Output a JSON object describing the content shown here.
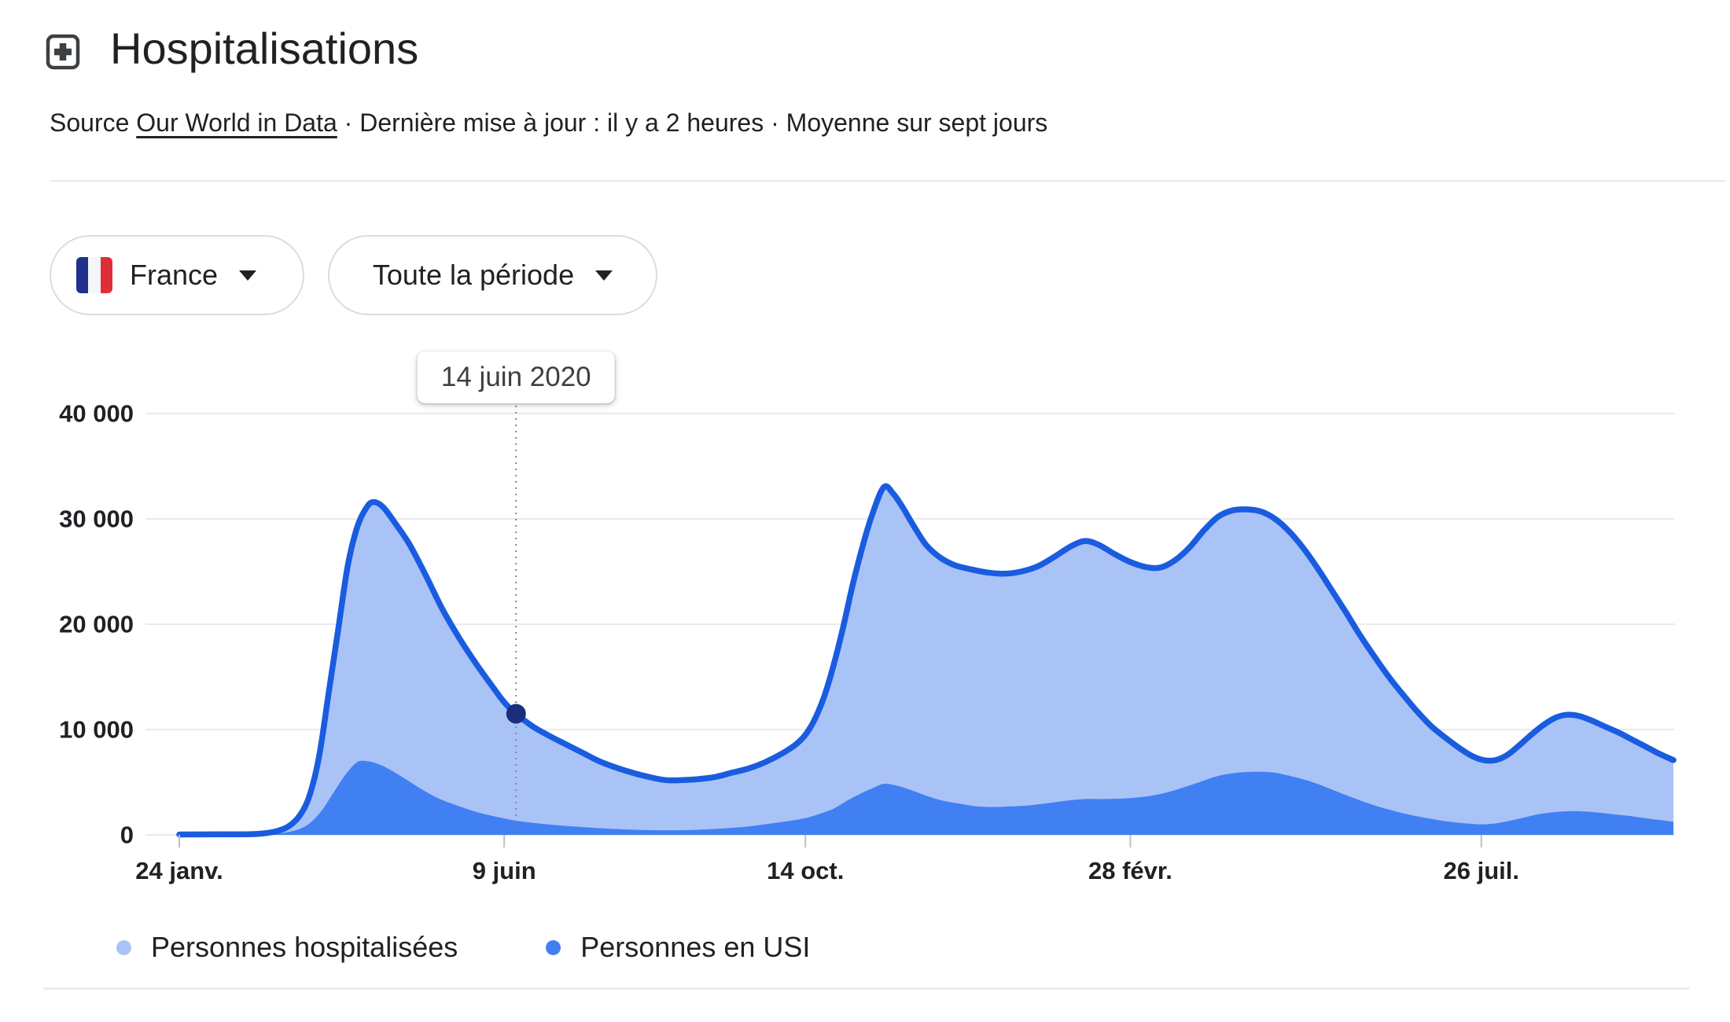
{
  "header": {
    "title": "Hospitalisations",
    "source_prefix": "Source ",
    "source_link": "Our World in Data",
    "source_rest": " · Dernière mise à jour : il y a 2 heures · Moyenne sur sept jours"
  },
  "filters": {
    "country": {
      "label": "France",
      "flag_colors": [
        "#1f308f",
        "#f5f6f7",
        "#df2e38"
      ]
    },
    "period": {
      "label": "Toute la période"
    }
  },
  "tooltip": {
    "date_label": "14 juin 2020"
  },
  "legend": [
    {
      "label": "Personnes hospitalisées",
      "color": "#aac3f7"
    },
    {
      "label": "Personnes en USI",
      "color": "#4180f3"
    }
  ],
  "chart_data": {
    "type": "area",
    "title": "Hospitalisations",
    "ylabel": "",
    "xlabel": "",
    "ylim": [
      0,
      40000
    ],
    "grid": true,
    "legend_position": "bottom",
    "y_ticks": [
      0,
      10000,
      20000,
      30000,
      40000
    ],
    "y_tick_labels": [
      "0",
      "10 000",
      "20 000",
      "30 000",
      "40 000"
    ],
    "x_tick_dates": [
      "2020-01-24",
      "2020-06-09",
      "2020-10-14",
      "2021-02-28",
      "2021-07-26"
    ],
    "x_tick_labels": [
      "24 janv.",
      "9 juin",
      "14 oct.",
      "28 févr.",
      "26 juil."
    ],
    "guide_color": "#80868b",
    "axis_color": "#bdc1c6",
    "grid_color": "#e8eaed",
    "highlight": {
      "date": "2020-06-14",
      "label": "14 juin 2020",
      "series": "Personnes hospitalisées",
      "value": 11500,
      "dot_color": "#1b2e7e"
    },
    "series": [
      {
        "name": "Personnes hospitalisées",
        "fill": "#aac3f7",
        "stroke": "#1a5ce0",
        "points": [
          [
            "2020-01-24",
            40
          ],
          [
            "2020-02-10",
            50
          ],
          [
            "2020-02-25",
            80
          ],
          [
            "2020-03-04",
            300
          ],
          [
            "2020-03-10",
            800
          ],
          [
            "2020-03-15",
            1900
          ],
          [
            "2020-03-19",
            3800
          ],
          [
            "2020-03-23",
            7500
          ],
          [
            "2020-03-27",
            13500
          ],
          [
            "2020-03-31",
            19500
          ],
          [
            "2020-04-04",
            25500
          ],
          [
            "2020-04-08",
            29200
          ],
          [
            "2020-04-12",
            31100
          ],
          [
            "2020-04-15",
            31600
          ],
          [
            "2020-04-19",
            31100
          ],
          [
            "2020-04-24",
            29600
          ],
          [
            "2020-04-30",
            27600
          ],
          [
            "2020-05-07",
            24600
          ],
          [
            "2020-05-14",
            21400
          ],
          [
            "2020-05-21",
            18700
          ],
          [
            "2020-05-28",
            16300
          ],
          [
            "2020-06-04",
            14100
          ],
          [
            "2020-06-09",
            12600
          ],
          [
            "2020-06-14",
            11500
          ],
          [
            "2020-06-21",
            10300
          ],
          [
            "2020-06-28",
            9400
          ],
          [
            "2020-07-05",
            8600
          ],
          [
            "2020-07-12",
            7800
          ],
          [
            "2020-07-19",
            7000
          ],
          [
            "2020-07-26",
            6400
          ],
          [
            "2020-08-02",
            5900
          ],
          [
            "2020-08-09",
            5500
          ],
          [
            "2020-08-16",
            5200
          ],
          [
            "2020-08-23",
            5200
          ],
          [
            "2020-08-30",
            5300
          ],
          [
            "2020-09-06",
            5500
          ],
          [
            "2020-09-13",
            5900
          ],
          [
            "2020-09-20",
            6300
          ],
          [
            "2020-09-27",
            6900
          ],
          [
            "2020-10-04",
            7700
          ],
          [
            "2020-10-10",
            8600
          ],
          [
            "2020-10-14",
            9500
          ],
          [
            "2020-10-18",
            11000
          ],
          [
            "2020-10-22",
            13200
          ],
          [
            "2020-10-26",
            16200
          ],
          [
            "2020-10-30",
            19800
          ],
          [
            "2020-11-03",
            23800
          ],
          [
            "2020-11-07",
            27300
          ],
          [
            "2020-11-11",
            30300
          ],
          [
            "2020-11-16",
            33000
          ],
          [
            "2020-11-20",
            32400
          ],
          [
            "2020-11-24",
            31100
          ],
          [
            "2020-11-29",
            29200
          ],
          [
            "2020-12-04",
            27500
          ],
          [
            "2020-12-10",
            26300
          ],
          [
            "2020-12-16",
            25600
          ],
          [
            "2020-12-23",
            25200
          ],
          [
            "2020-12-30",
            24900
          ],
          [
            "2021-01-06",
            24800
          ],
          [
            "2021-01-13",
            25000
          ],
          [
            "2021-01-20",
            25500
          ],
          [
            "2021-01-27",
            26400
          ],
          [
            "2021-02-03",
            27400
          ],
          [
            "2021-02-09",
            27900
          ],
          [
            "2021-02-15",
            27500
          ],
          [
            "2021-02-21",
            26700
          ],
          [
            "2021-02-28",
            25900
          ],
          [
            "2021-03-07",
            25400
          ],
          [
            "2021-03-13",
            25400
          ],
          [
            "2021-03-19",
            26100
          ],
          [
            "2021-03-25",
            27300
          ],
          [
            "2021-03-31",
            28900
          ],
          [
            "2021-04-06",
            30200
          ],
          [
            "2021-04-12",
            30800
          ],
          [
            "2021-04-18",
            30900
          ],
          [
            "2021-04-24",
            30700
          ],
          [
            "2021-04-30",
            30000
          ],
          [
            "2021-05-06",
            28800
          ],
          [
            "2021-05-12",
            27200
          ],
          [
            "2021-05-18",
            25300
          ],
          [
            "2021-05-24",
            23200
          ],
          [
            "2021-05-30",
            21100
          ],
          [
            "2021-06-05",
            18900
          ],
          [
            "2021-06-11",
            16900
          ],
          [
            "2021-06-17",
            15000
          ],
          [
            "2021-06-23",
            13300
          ],
          [
            "2021-06-29",
            11700
          ],
          [
            "2021-07-05",
            10300
          ],
          [
            "2021-07-11",
            9200
          ],
          [
            "2021-07-17",
            8200
          ],
          [
            "2021-07-22",
            7500
          ],
          [
            "2021-07-27",
            7100
          ],
          [
            "2021-08-01",
            7100
          ],
          [
            "2021-08-06",
            7600
          ],
          [
            "2021-08-11",
            8500
          ],
          [
            "2021-08-16",
            9500
          ],
          [
            "2021-08-21",
            10400
          ],
          [
            "2021-08-26",
            11100
          ],
          [
            "2021-08-31",
            11400
          ],
          [
            "2021-09-05",
            11300
          ],
          [
            "2021-09-10",
            10900
          ],
          [
            "2021-09-16",
            10300
          ],
          [
            "2021-09-22",
            9700
          ],
          [
            "2021-09-28",
            9000
          ],
          [
            "2021-10-04",
            8300
          ],
          [
            "2021-10-09",
            7700
          ],
          [
            "2021-10-15",
            7100
          ]
        ]
      },
      {
        "name": "Personnes en USI",
        "fill": "#4180f3",
        "stroke": "none",
        "points": [
          [
            "2020-01-24",
            10
          ],
          [
            "2020-02-15",
            15
          ],
          [
            "2020-03-01",
            60
          ],
          [
            "2020-03-08",
            200
          ],
          [
            "2020-03-14",
            500
          ],
          [
            "2020-03-19",
            1100
          ],
          [
            "2020-03-24",
            2300
          ],
          [
            "2020-03-29",
            4000
          ],
          [
            "2020-04-03",
            5700
          ],
          [
            "2020-04-08",
            6900
          ],
          [
            "2020-04-12",
            7000
          ],
          [
            "2020-04-16",
            6800
          ],
          [
            "2020-04-21",
            6300
          ],
          [
            "2020-04-27",
            5500
          ],
          [
            "2020-05-04",
            4500
          ],
          [
            "2020-05-12",
            3500
          ],
          [
            "2020-05-20",
            2800
          ],
          [
            "2020-05-28",
            2200
          ],
          [
            "2020-06-05",
            1750
          ],
          [
            "2020-06-14",
            1350
          ],
          [
            "2020-06-23",
            1100
          ],
          [
            "2020-07-02",
            900
          ],
          [
            "2020-07-12",
            750
          ],
          [
            "2020-07-22",
            600
          ],
          [
            "2020-08-01",
            500
          ],
          [
            "2020-08-11",
            440
          ],
          [
            "2020-08-21",
            440
          ],
          [
            "2020-08-31",
            500
          ],
          [
            "2020-09-10",
            620
          ],
          [
            "2020-09-20",
            800
          ],
          [
            "2020-09-30",
            1100
          ],
          [
            "2020-10-08",
            1350
          ],
          [
            "2020-10-14",
            1600
          ],
          [
            "2020-10-20",
            2000
          ],
          [
            "2020-10-26",
            2500
          ],
          [
            "2020-11-01",
            3300
          ],
          [
            "2020-11-07",
            4000
          ],
          [
            "2020-11-12",
            4500
          ],
          [
            "2020-11-16",
            4850
          ],
          [
            "2020-11-21",
            4700
          ],
          [
            "2020-11-27",
            4300
          ],
          [
            "2020-12-03",
            3800
          ],
          [
            "2020-12-10",
            3300
          ],
          [
            "2020-12-17",
            3000
          ],
          [
            "2020-12-24",
            2750
          ],
          [
            "2020-12-31",
            2650
          ],
          [
            "2021-01-08",
            2700
          ],
          [
            "2021-01-16",
            2800
          ],
          [
            "2021-01-24",
            3000
          ],
          [
            "2021-02-01",
            3250
          ],
          [
            "2021-02-09",
            3400
          ],
          [
            "2021-02-17",
            3400
          ],
          [
            "2021-02-25",
            3450
          ],
          [
            "2021-03-05",
            3600
          ],
          [
            "2021-03-13",
            3900
          ],
          [
            "2021-03-21",
            4400
          ],
          [
            "2021-03-29",
            5000
          ],
          [
            "2021-04-06",
            5600
          ],
          [
            "2021-04-14",
            5900
          ],
          [
            "2021-04-22",
            6000
          ],
          [
            "2021-04-30",
            5900
          ],
          [
            "2021-05-08",
            5500
          ],
          [
            "2021-05-16",
            5000
          ],
          [
            "2021-05-24",
            4300
          ],
          [
            "2021-06-01",
            3600
          ],
          [
            "2021-06-09",
            2950
          ],
          [
            "2021-06-17",
            2400
          ],
          [
            "2021-06-25",
            1950
          ],
          [
            "2021-07-03",
            1600
          ],
          [
            "2021-07-11",
            1300
          ],
          [
            "2021-07-19",
            1100
          ],
          [
            "2021-07-27",
            1000
          ],
          [
            "2021-08-04",
            1200
          ],
          [
            "2021-08-12",
            1600
          ],
          [
            "2021-08-20",
            2000
          ],
          [
            "2021-08-28",
            2200
          ],
          [
            "2021-09-04",
            2250
          ],
          [
            "2021-09-12",
            2150
          ],
          [
            "2021-09-20",
            1950
          ],
          [
            "2021-09-28",
            1750
          ],
          [
            "2021-10-06",
            1500
          ],
          [
            "2021-10-15",
            1250
          ]
        ]
      }
    ]
  }
}
